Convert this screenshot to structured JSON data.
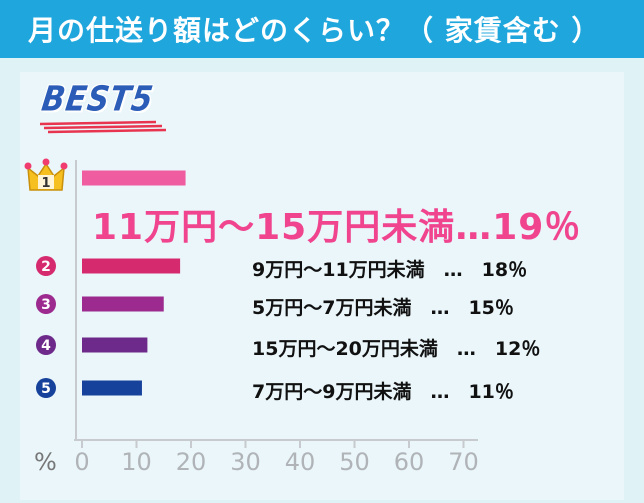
{
  "header": {
    "title": "月の仕送り額はどのくらい？（ 家賃含む ）"
  },
  "badge": {
    "text": "BEST5"
  },
  "colors": {
    "header_bg": "#1fa7dd",
    "top_label": "#f0448f",
    "bar_1": "#f05ca0",
    "bar_2": "#d62a6e",
    "bar_3": "#9c2a8f",
    "bar_4": "#6d2a8a",
    "bar_5": "#17429b",
    "crown": "#f6c021"
  },
  "chart_data": {
    "type": "bar",
    "orientation": "horizontal",
    "title": "月の仕送り額はどのくらい？（ 家賃含む ）",
    "categories": [
      "11万円～15万円未満",
      "9万円～11万円未満",
      "5万円～7万円未満",
      "15万円～20万円未満",
      "7万円～9万円未満"
    ],
    "values": [
      19,
      18,
      15,
      12,
      11
    ],
    "ranks": [
      "1",
      "2",
      "3",
      "4",
      "5"
    ],
    "value_labels": [
      "11万円～15万円未満…19％",
      "9万円～11万円未満　…　18％",
      "5万円～7万円未満　…　15％",
      "15万円～20万円未満　…　12％",
      "7万円～9万円未満　…　11％"
    ],
    "xlabel": "%",
    "xlim": [
      0,
      70
    ],
    "xticks": [
      "0",
      "10",
      "20",
      "30",
      "40",
      "50",
      "60",
      "70"
    ],
    "grid": false
  }
}
